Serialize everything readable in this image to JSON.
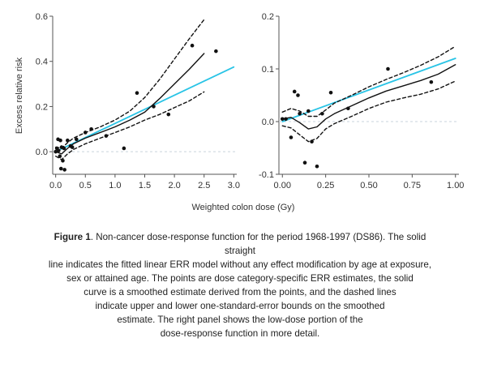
{
  "chart_data": [
    {
      "type": "line",
      "panel": "left",
      "ylabel": "Excess relative risk",
      "xlim": [
        -0.05,
        3.05
      ],
      "ylim": [
        -0.1,
        0.6
      ],
      "xticks": [
        0.0,
        0.5,
        1.0,
        1.5,
        2.0,
        2.5,
        3.0
      ],
      "xtick_labels": [
        "0.0",
        "0.5",
        "1.0",
        "1.5",
        "2.0",
        "2.5",
        "3.0"
      ],
      "yticks": [
        0.0,
        0.2,
        0.4,
        0.6
      ],
      "ytick_labels": [
        "0.0",
        "0.2",
        "0.4",
        "0.6"
      ],
      "reference_line_y": 0.0,
      "series": [
        {
          "role": "fitted linear ERR model",
          "style": "solid",
          "color": "#29c4e6",
          "x": [
            0.0,
            3.0
          ],
          "y": [
            0.0,
            0.375
          ]
        },
        {
          "role": "smoothed curve",
          "style": "solid",
          "color": "#111111",
          "x": [
            0.0,
            0.1,
            0.2,
            0.3,
            0.5,
            0.75,
            1.0,
            1.25,
            1.5,
            1.75,
            2.0,
            2.25,
            2.5
          ],
          "y": [
            0.0,
            -0.01,
            0.015,
            0.035,
            0.06,
            0.085,
            0.11,
            0.14,
            0.175,
            0.235,
            0.3,
            0.365,
            0.435
          ]
        },
        {
          "role": "upper bound",
          "style": "dashed",
          "color": "#111111",
          "x": [
            0.0,
            0.1,
            0.2,
            0.3,
            0.5,
            0.75,
            1.0,
            1.25,
            1.5,
            1.75,
            2.0,
            2.25,
            2.5
          ],
          "y": [
            0.02,
            0.015,
            0.04,
            0.06,
            0.085,
            0.11,
            0.14,
            0.18,
            0.24,
            0.32,
            0.41,
            0.5,
            0.585
          ]
        },
        {
          "role": "lower bound",
          "style": "dashed",
          "color": "#111111",
          "x": [
            0.0,
            0.1,
            0.2,
            0.3,
            0.5,
            0.75,
            1.0,
            1.25,
            1.5,
            1.75,
            2.0,
            2.25,
            2.5
          ],
          "y": [
            -0.02,
            -0.035,
            -0.01,
            0.01,
            0.035,
            0.06,
            0.085,
            0.11,
            0.14,
            0.165,
            0.195,
            0.225,
            0.265
          ]
        },
        {
          "role": "dose category ERR estimates",
          "style": "points",
          "color": "#111111",
          "x": [
            0.0,
            0.02,
            0.04,
            0.05,
            0.07,
            0.08,
            0.09,
            0.1,
            0.12,
            0.14,
            0.15,
            0.2,
            0.25,
            0.28,
            0.35,
            0.5,
            0.6,
            0.85,
            1.15,
            1.37,
            1.65,
            1.9,
            2.3,
            2.7
          ],
          "y": [
            0.0,
            0.015,
            0.055,
            0.005,
            -0.02,
            0.05,
            -0.075,
            0.02,
            -0.04,
            0.015,
            -0.08,
            0.05,
            0.025,
            0.02,
            0.055,
            0.085,
            0.1,
            0.07,
            0.015,
            0.26,
            0.2,
            0.165,
            0.47,
            0.445
          ]
        }
      ]
    },
    {
      "type": "line",
      "panel": "right",
      "xlim": [
        -0.02,
        1.02
      ],
      "ylim": [
        -0.1,
        0.2
      ],
      "xticks": [
        0.0,
        0.25,
        0.5,
        0.75,
        1.0
      ],
      "xtick_labels": [
        "0.00",
        "0.25",
        "0.50",
        "0.75",
        "1.00"
      ],
      "yticks": [
        -0.1,
        0.0,
        0.1,
        0.2
      ],
      "ytick_labels": [
        "-0.1",
        "0.0",
        "0.1",
        "0.2"
      ],
      "reference_line_y": 0.0,
      "series": [
        {
          "role": "fitted linear ERR model",
          "style": "solid",
          "color": "#29c4e6",
          "x": [
            0.0,
            1.0
          ],
          "y": [
            0.0,
            0.12
          ]
        },
        {
          "role": "smoothed curve",
          "style": "solid",
          "color": "#111111",
          "x": [
            0.0,
            0.05,
            0.1,
            0.15,
            0.2,
            0.25,
            0.3,
            0.4,
            0.5,
            0.6,
            0.7,
            0.8,
            0.9,
            1.0
          ],
          "y": [
            0.005,
            0.008,
            -0.002,
            -0.014,
            -0.01,
            0.005,
            0.015,
            0.03,
            0.045,
            0.058,
            0.068,
            0.078,
            0.09,
            0.108
          ]
        },
        {
          "role": "upper bound",
          "style": "dashed",
          "color": "#111111",
          "x": [
            0.0,
            0.05,
            0.1,
            0.15,
            0.2,
            0.25,
            0.3,
            0.4,
            0.5,
            0.6,
            0.7,
            0.8,
            0.9,
            1.0
          ],
          "y": [
            0.018,
            0.025,
            0.02,
            0.01,
            0.01,
            0.022,
            0.035,
            0.05,
            0.066,
            0.08,
            0.093,
            0.107,
            0.123,
            0.143
          ]
        },
        {
          "role": "lower bound",
          "style": "dashed",
          "color": "#111111",
          "x": [
            0.0,
            0.05,
            0.1,
            0.15,
            0.2,
            0.25,
            0.3,
            0.4,
            0.5,
            0.6,
            0.7,
            0.8,
            0.9,
            1.0
          ],
          "y": [
            -0.008,
            -0.012,
            -0.025,
            -0.038,
            -0.032,
            -0.014,
            -0.004,
            0.01,
            0.025,
            0.037,
            0.045,
            0.052,
            0.062,
            0.077
          ]
        },
        {
          "role": "dose category ERR estimates",
          "style": "points",
          "color": "#111111",
          "x": [
            0.0,
            0.02,
            0.05,
            0.07,
            0.09,
            0.1,
            0.13,
            0.15,
            0.17,
            0.2,
            0.23,
            0.28,
            0.38,
            0.61,
            0.86
          ],
          "y": [
            0.005,
            0.005,
            -0.03,
            0.057,
            0.05,
            0.015,
            -0.078,
            0.02,
            -0.038,
            -0.085,
            0.015,
            0.055,
            0.025,
            0.1,
            0.075
          ]
        }
      ]
    }
  ],
  "shared_xlabel": "Weighted colon dose (Gy)",
  "caption": {
    "label": "Figure 1",
    "lines": [
      ". Non-cancer dose-response function for the period 1968-1997 (DS86). The solid",
      "straight",
      "line indicates the fitted linear ERR model without any effect modification by age at exposure,",
      "sex or attained age. The points are dose category-specific ERR estimates, the solid",
      "curve is a smoothed estimate derived from the points, and the dashed lines",
      "indicate upper and lower one-standard-error bounds on the smoothed",
      "estimate. The right panel shows the low-dose portion of the",
      "dose-response function in more detail."
    ]
  }
}
